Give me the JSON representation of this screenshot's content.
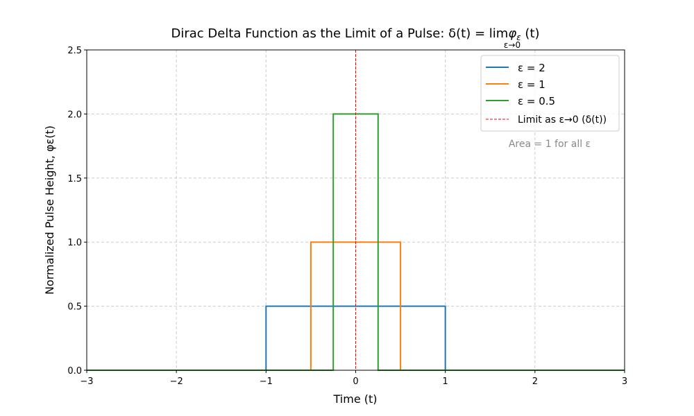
{
  "chart_data": {
    "type": "line",
    "title": "Dirac Delta Function as the Limit of a Pulse: δ(t) = lim φ_ε (t)",
    "title_main": "Dirac Delta Function as the Limit of a Pulse: δ(t) = lim",
    "title_phi": "φ",
    "title_sub": "ε",
    "title_tail": " (t)",
    "title_lim_sub": "ε→0",
    "xlabel": "Time (t)",
    "ylabel": "Normalized Pulse Height, φε(t)",
    "xlim": [
      -3,
      3
    ],
    "ylim": [
      0,
      2.5
    ],
    "xticks": [
      -3,
      -2,
      -1,
      0,
      1,
      2,
      3
    ],
    "xtick_labels": [
      "−3",
      "−2",
      "−1",
      "0",
      "1",
      "2",
      "3"
    ],
    "yticks": [
      0,
      0.5,
      1,
      1.5,
      2,
      2.5
    ],
    "ytick_labels": [
      "0.0",
      "0.5",
      "1.0",
      "1.5",
      "2.0",
      "2.5"
    ],
    "grid": true,
    "legend_position": "top-right",
    "series": [
      {
        "name": "ε = 2",
        "color": "#1f77b4",
        "epsilon": 2,
        "height": 0.5,
        "x": [
          -3,
          -1,
          -1,
          1,
          1,
          3
        ],
        "y": [
          0,
          0,
          0.5,
          0.5,
          0,
          0
        ]
      },
      {
        "name": "ε = 1",
        "color": "#ff7f0e",
        "epsilon": 1,
        "height": 1,
        "x": [
          -3,
          -0.5,
          -0.5,
          0.5,
          0.5,
          3
        ],
        "y": [
          0,
          0,
          1,
          1,
          0,
          0
        ]
      },
      {
        "name": "ε = 0.5",
        "color": "#2ca02c",
        "epsilon": 0.5,
        "height": 2,
        "x": [
          -3,
          -0.25,
          -0.25,
          0.25,
          0.25,
          3
        ],
        "y": [
          0,
          0,
          2,
          2,
          0,
          0
        ]
      }
    ],
    "limit_line": {
      "name": "Limit as ε→0 (δ(t))",
      "x": 0,
      "color": "#ff0000"
    },
    "annotation": "Area = 1 for all ε"
  }
}
